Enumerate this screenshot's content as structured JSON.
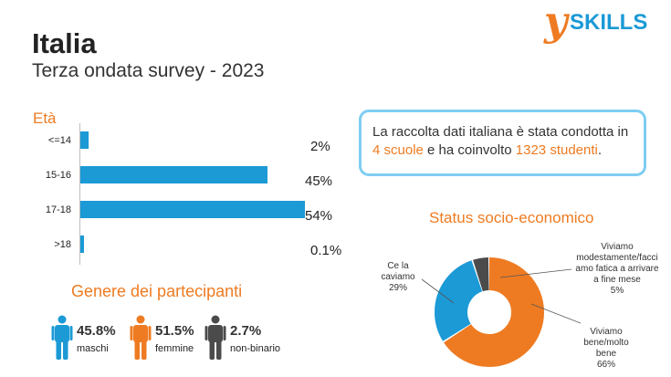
{
  "header": {
    "title": "Italia",
    "subtitle": "Terza ondata survey - 2023",
    "logo_y": "y",
    "logo_text": "SKILLS"
  },
  "info": {
    "pre1": "La raccolta dati italiana è stata condotta in ",
    "hl1": "4 scuole",
    "pre2": " e ha coinvolto ",
    "hl2": "1323 studenti",
    "post": "."
  },
  "gender": {
    "heading": "Genere dei partecipanti",
    "items": [
      {
        "pct": "45.8%",
        "label": "maschi",
        "color": "#1b9ad6"
      },
      {
        "pct": "51.5%",
        "label": "femmine",
        "color": "#ee7b22"
      },
      {
        "pct": "2.7%",
        "label": "non-binario",
        "color": "#4b4b4b"
      }
    ]
  },
  "colors": {
    "orange": "#ee7b22",
    "blue": "#1b9ad6",
    "dark": "#4b4b4b",
    "box_border": "#7fcdf2"
  },
  "chart_data": [
    {
      "type": "bar",
      "orientation": "horizontal",
      "title": "Età",
      "categories": [
        "<=14",
        "15-16",
        "17-18",
        ">18"
      ],
      "values": [
        2,
        45,
        54,
        0.1
      ],
      "labels": [
        "2%",
        "45%",
        "54%",
        "0.1%"
      ],
      "color": "#1b9ad6"
    },
    {
      "type": "pie",
      "donut": true,
      "title": "Status socio-economico",
      "slices": [
        {
          "label": "Viviamo bene/molto bene",
          "value": 66,
          "display": "66%",
          "color": "#ee7b22"
        },
        {
          "label": "Ce la caviamo",
          "value": 29,
          "display": "29%",
          "color": "#1b9ad6"
        },
        {
          "label": "Viviamo modestamente/facciamo fatica a arrivare a fine mese",
          "value": 5,
          "display": "5%",
          "color": "#4b4b4b"
        }
      ]
    }
  ]
}
